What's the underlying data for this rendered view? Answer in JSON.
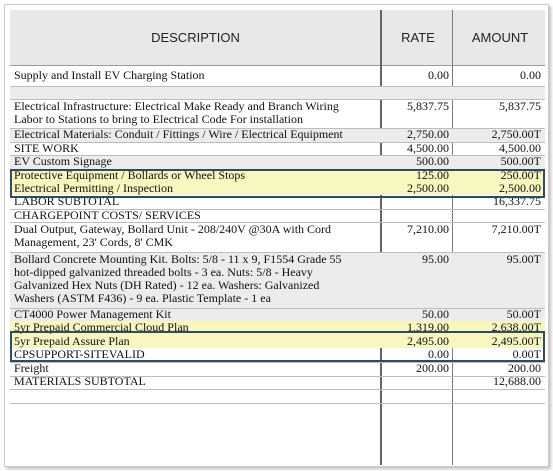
{
  "header": {
    "description": "DESCRIPTION",
    "rate": "RATE",
    "amount": "AMOUNT"
  },
  "rows": [
    {
      "desc": "Supply and Install EV Charging Station",
      "rate": "0.00",
      "amount": "0.00"
    },
    {
      "desc": "Electrical Infrastructure: Electrical Make Ready and Branch Wiring\nLabor to Stations to bring to Electrical Code For installation",
      "rate": "5,837.75",
      "amount": "5,837.75"
    },
    {
      "desc": "Electrical Materials: Conduit / Fittings / Wire / Electrical Equipment",
      "rate": "2,750.00",
      "amount": "2,750.00T"
    },
    {
      "desc": "SITE WORK",
      "rate": "4,500.00",
      "amount": "4,500.00"
    },
    {
      "desc": "EV Custom Signage",
      "rate": "500.00",
      "amount": "500.00T"
    },
    {
      "desc": "Protective Equipment / Bollards or Wheel Stops",
      "rate": "125.00",
      "amount": "250.00T"
    },
    {
      "desc": "Electrical Permitting / Inspection",
      "rate": "2,500.00",
      "amount": "2,500.00"
    },
    {
      "desc": "LABOR SUBTOTAL",
      "rate": "",
      "amount": "16,337.75"
    },
    {
      "desc": "CHARGEPOINT COSTS/ SERVICES",
      "rate": "",
      "amount": ""
    },
    {
      "desc": "Dual Output, Gateway, Bollard Unit - 208/240V @30A with Cord\nManagement, 23' Cords, 8' CMK",
      "rate": "7,210.00",
      "amount": "7,210.00T"
    },
    {
      "desc": "Bollard Concrete Mounting Kit. Bolts: 5/8 - 11 x 9, F1554 Grade 55\nhot-dipped galvanized threaded bolts - 3 ea. Nuts: 5/8 - Heavy\nGalvanized Hex Nuts (DH Rated) - 12 ea. Washers: Galvanized\nWashers (ASTM F436) - 9 ea. Plastic Template - 1 ea",
      "rate": "95.00",
      "amount": "95.00T"
    },
    {
      "desc": "CT4000 Power Management Kit",
      "rate": "50.00",
      "amount": "50.00T"
    },
    {
      "desc": "5yr Prepaid Commercial Cloud Plan",
      "rate": "1,319.00",
      "amount": "2,638.00T"
    },
    {
      "desc": "5yr Prepaid Assure Plan",
      "rate": "2,495.00",
      "amount": "2,495.00T"
    },
    {
      "desc": "CPSUPPORT-SITEVALID",
      "rate": "0.00",
      "amount": "0.00T"
    },
    {
      "desc": "Freight",
      "rate": "200.00",
      "amount": "200.00"
    },
    {
      "desc": "MATERIALS SUBTOTAL",
      "rate": "",
      "amount": "12,688.00"
    }
  ]
}
